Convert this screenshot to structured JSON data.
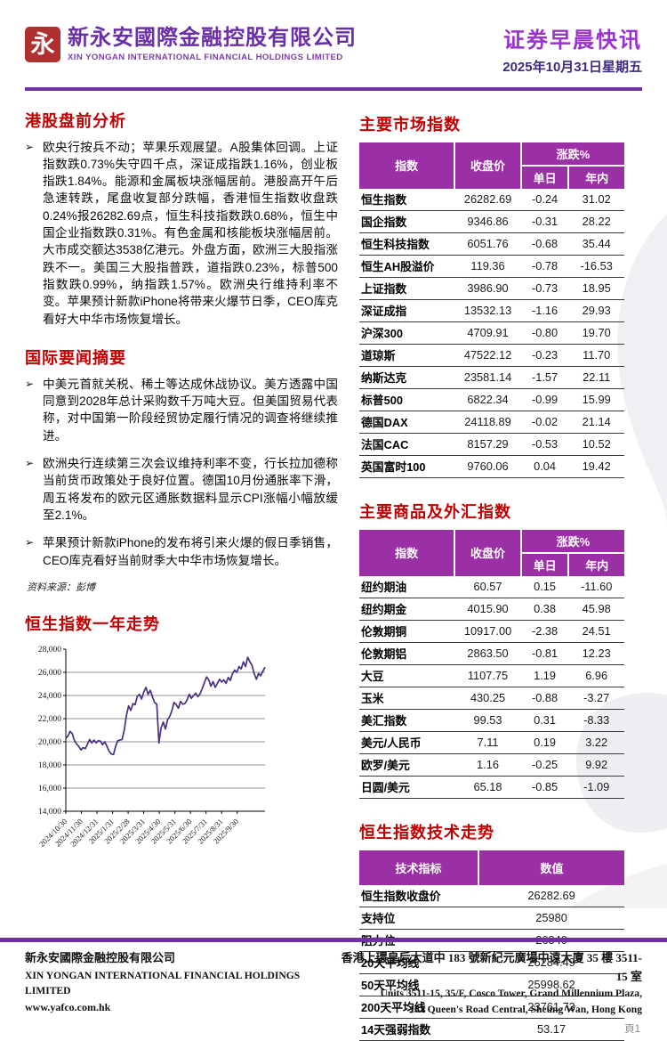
{
  "header": {
    "logo_glyph": "永",
    "company_zh": "新永安國際金融控股有限公司",
    "company_en": "XIN YONGAN INTERNATIONAL FINANCIAL HOLDINGS LIMITED",
    "doc_title": "证券早晨快讯",
    "doc_date": "2025年10月31日星期五"
  },
  "left": {
    "section1": {
      "title": "港股盘前分析",
      "bullets": [
        "欧央行按兵不动；苹果乐观展望。A股集体回调。上证指数跌0.73%失守四千点，深证成指跌1.16%，创业板指跌1.84%。能源和金属板块涨幅居前。港股高开午后急速转跌，尾盘收复部分跌幅，香港恒生指数收盘跌0.24%报26282.69点，恒生科技指数跌0.68%，恒生中国企业指数跌0.31%。有色金属和核能板块涨幅居前。大市成交额达3538亿港元。外盘方面，欧洲三大股指涨跌不一。美国三大股指普跌，道指跌0.23%，标普500指数跌0.99%，纳指跌1.57%。欧洲央行维持利率不变。苹果预计新款iPhone将带来火爆节日季，CEO库克看好大中华市场恢复增长。"
      ]
    },
    "section2": {
      "title": "国际要闻摘要",
      "bullets": [
        "中美元首就关税、稀土等达成休战协议。美方透露中国同意到2028年总计采购数千万吨大豆。但美国贸易代表称，对中国第一阶段经贸协定履行情况的调查将继续推进。",
        "欧洲央行连续第三次会议维持利率不变，行长拉加德称当前货币政策处于良好位置。德国10月份通胀率下滑，周五将发布的欧元区通胀数据料显示CPI涨幅小幅放缓至2.1%。",
        "苹果预计新款iPhone的发布将引来火爆的假日季销售，CEO库克看好当前财季大中华市场恢复增长。"
      ]
    },
    "source_note": "资料来源：彭博",
    "chart_title": "恒生指数一年走势"
  },
  "chart_data": {
    "type": "line",
    "title": "恒生指数一年走势",
    "ylim": [
      14000,
      28000
    ],
    "ytick_step": 2000,
    "x_labels": [
      "2024/10/30",
      "2024/11/30",
      "2024/12/31",
      "2025/1/31",
      "2025/2/28",
      "2025/3/31",
      "2025/4/30",
      "2025/5/31",
      "2025/6/30",
      "2025/7/31",
      "2025/8/31",
      "2025/9/30"
    ],
    "line_color": "#4b2e83",
    "grid": true,
    "values": [
      20300,
      20500,
      20900,
      20700,
      20100,
      19800,
      19600,
      19300,
      19500,
      19400,
      19800,
      20200,
      19900,
      20150,
      19900,
      20100,
      20050,
      19750,
      20000,
      19600,
      19200,
      18950,
      18900,
      19600,
      20100,
      20150,
      20200,
      21000,
      22300,
      23100,
      22700,
      23300,
      23200,
      23900,
      24100,
      23700,
      24300,
      24700,
      24100,
      24450,
      23900,
      23400,
      23250,
      19900,
      21200,
      21700,
      21100,
      21900,
      22200,
      22700,
      23400,
      23200,
      22900,
      23500,
      23250,
      23300,
      23600,
      24100,
      23750,
      24000,
      24200,
      23900,
      24150,
      24600,
      25100,
      25600,
      25350,
      24800,
      25200,
      24700,
      25050,
      25400,
      25150,
      25350,
      25050,
      25550,
      25300,
      25900,
      26200,
      26000,
      26500,
      26300,
      26900,
      26500,
      27300,
      26900,
      26600,
      25900,
      25400,
      25900,
      25700,
      26100,
      26450
    ]
  },
  "right": {
    "table_market": {
      "title": "主要市场指数",
      "header": {
        "col1": "指数",
        "col2": "收盘价",
        "group": "涨跌%",
        "sub1": "单日",
        "sub2": "年内"
      },
      "rows": [
        [
          "恒生指数",
          "26282.69",
          "-0.24",
          "31.02"
        ],
        [
          "国企指数",
          "9346.86",
          "-0.31",
          "28.22"
        ],
        [
          "恒生科技指数",
          "6051.76",
          "-0.68",
          "35.44"
        ],
        [
          "恒生AH股溢价",
          "119.36",
          "-0.78",
          "-16.53"
        ],
        [
          "上证指数",
          "3986.90",
          "-0.73",
          "18.95"
        ],
        [
          "深证成指",
          "13532.13",
          "-1.16",
          "29.93"
        ],
        [
          "沪深300",
          "4709.91",
          "-0.80",
          "19.70"
        ],
        [
          "道琼斯",
          "47522.12",
          "-0.23",
          "11.70"
        ],
        [
          "纳斯达克",
          "23581.14",
          "-1.57",
          "22.11"
        ],
        [
          "标普500",
          "6822.34",
          "-0.99",
          "15.99"
        ],
        [
          "德国DAX",
          "24118.89",
          "-0.02",
          "21.14"
        ],
        [
          "法国CAC",
          "8157.29",
          "-0.53",
          "10.52"
        ],
        [
          "英国富时100",
          "9760.06",
          "0.04",
          "19.42"
        ]
      ]
    },
    "table_commodity": {
      "title": "主要商品及外汇指数",
      "header": {
        "col1": "指数",
        "col2": "收盘价",
        "group": "涨跌%",
        "sub1": "单日",
        "sub2": "年内"
      },
      "rows": [
        [
          "纽约期油",
          "60.57",
          "0.15",
          "-11.60"
        ],
        [
          "纽约期金",
          "4015.90",
          "0.38",
          "45.98"
        ],
        [
          "伦敦期铜",
          "10917.00",
          "-2.38",
          "24.51"
        ],
        [
          "伦敦期铝",
          "2863.50",
          "-0.81",
          "12.23"
        ],
        [
          "大豆",
          "1107.75",
          "1.19",
          "6.96"
        ],
        [
          "玉米",
          "430.25",
          "-0.88",
          "-3.27"
        ],
        [
          "美汇指数",
          "99.53",
          "0.31",
          "-8.33"
        ],
        [
          "美元/人民币",
          "7.11",
          "0.19",
          "3.22"
        ],
        [
          "欧罗/美元",
          "1.16",
          "-0.25",
          "9.92"
        ],
        [
          "日圆/美元",
          "65.18",
          "-0.85",
          "-1.09"
        ]
      ]
    },
    "table_technical": {
      "title": "恒生指数技术走势",
      "header": {
        "col1": "技术指标",
        "col2": "数值"
      },
      "rows": [
        [
          "恒生指数收盘价",
          "26282.69"
        ],
        [
          "支持位",
          "25980"
        ],
        [
          "阻力位",
          "26840"
        ],
        [
          "20天平均线",
          "26284.49"
        ],
        [
          "50天平均线",
          "25998.62"
        ],
        [
          "200天平均线",
          "23761.73"
        ],
        [
          "14天强弱指数",
          "53.17"
        ]
      ]
    }
  },
  "footer": {
    "company_zh": "新永安國際金融控股有限公司",
    "company_en": "XIN YONGAN INTERNATIONAL FINANCIAL HOLDINGS LIMITED",
    "website": "www.yafco.com.hk",
    "address_zh": "香港上環皇后大道中 183 號新紀元廣場中遠大廈 35 樓 3511-15 室",
    "address_en1": "Units 3511-15, 35/F, Cosco Tower, Grand Millennium Plaza,",
    "address_en2": "183 Queen's Road Central, Sheung Wan, Hong Kong",
    "page_number": "頁1"
  },
  "colors": {
    "brand_purple": "#7030a0",
    "title_purple": "#9933cc",
    "table_header_purple": "#9b2fa5",
    "heading_red": "#c00000",
    "logo_red": "#b03030",
    "chart_line": "#4b2e83"
  },
  "bullet_glyph": "➢"
}
